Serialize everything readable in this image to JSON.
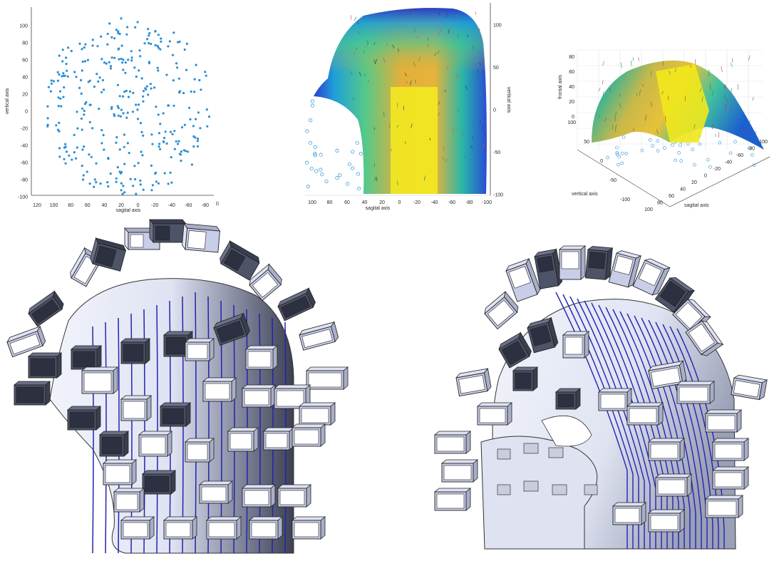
{
  "figure": {
    "panel_a": {
      "xlabel": "sagital axis",
      "ylabel": "vertical axis",
      "xticks": [
        "120",
        "100",
        "80",
        "60",
        "40",
        "20",
        "0",
        "-20",
        "-40",
        "-60",
        "-80"
      ],
      "yticks": [
        "100",
        "80",
        "60",
        "40",
        "20",
        "0",
        "-20",
        "-40",
        "-60",
        "-80",
        "-100"
      ],
      "corner_tick": "0"
    },
    "panel_b": {
      "xlabel": "sagital axis",
      "ylabel": "vertical axis",
      "xticks": [
        "100",
        "80",
        "60",
        "40",
        "20",
        "0",
        "-20",
        "-40",
        "-60",
        "-80",
        "-100"
      ],
      "yticks": [
        "100",
        "50",
        "0",
        "-50",
        "-100"
      ]
    },
    "panel_c": {
      "zlabel": "frontal axis",
      "ylabel": "vertical axis",
      "xlabel": "sagital axis",
      "zticks": [
        "80",
        "60",
        "40",
        "20",
        "0"
      ],
      "yticks": [
        "100",
        "50",
        "0",
        "-50",
        "-100"
      ],
      "xticks": [
        "100",
        "80",
        "60",
        "40",
        "20",
        "0",
        "-20",
        "-40",
        "-60",
        "-80",
        "-100"
      ]
    },
    "colors": {
      "scatter": "#2b8fd6",
      "cap_blue": "#1f2fc4",
      "cap_yellow": "#f5f018",
      "box_light": "#c8cde8",
      "box_dark": "#4e5468",
      "shell": "#e8ebf6",
      "channel": "#2323b0"
    }
  }
}
